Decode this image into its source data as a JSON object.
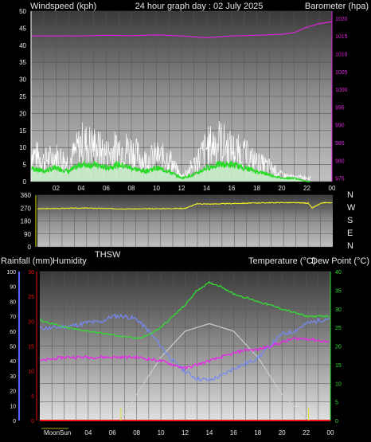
{
  "colors": {
    "windspeed": "#ffffff",
    "wind_average": "#22dd22",
    "barometer": "#dd22dd",
    "wind_direction": "#eeee22",
    "humidity": "#7788ee",
    "temperature": "#33dd33",
    "dew_point": "#ee22ee",
    "sun": "#cccccc",
    "rainfall": "#ee1111"
  },
  "chart_data": [
    {
      "type": "line",
      "title": "24 hour graph day : 02 July 2025",
      "ylabel": "Windspeed (kph)",
      "ylabel_right": "Barometer (hpa)",
      "x_tick_labels": [
        "02",
        "04",
        "06",
        "08",
        "10",
        "12",
        "14",
        "16",
        "18",
        "20",
        "22",
        "00"
      ],
      "y_ticks": [
        0,
        5,
        10,
        15,
        20,
        25,
        30,
        35,
        40,
        45,
        50
      ],
      "y2_ticks": [
        975,
        980,
        985,
        990,
        995,
        1000,
        1005,
        1010,
        1015,
        1020
      ],
      "ylim": [
        0,
        50
      ],
      "y2lim": [
        974,
        1022
      ],
      "series": [
        {
          "name": "Windspeed (kph)",
          "x": [
            0,
            1,
            2,
            3,
            4,
            5,
            6,
            7,
            8,
            9,
            10,
            11,
            12,
            13,
            14,
            15,
            16,
            17,
            18,
            19,
            20,
            21,
            22,
            23,
            24
          ],
          "values": [
            14,
            10,
            12,
            9,
            18,
            17,
            13,
            16,
            15,
            10,
            12,
            11,
            2,
            8,
            16,
            19,
            15,
            13,
            9,
            7,
            3,
            2,
            2,
            1,
            1
          ]
        },
        {
          "name": "Average wind",
          "x": [
            0,
            1,
            2,
            3,
            4,
            5,
            6,
            7,
            8,
            9,
            10,
            11,
            12,
            13,
            14,
            15,
            16,
            17,
            18,
            19,
            20,
            21,
            22,
            23,
            24
          ],
          "values": [
            4,
            3,
            4,
            3,
            5,
            5,
            4,
            5,
            4,
            3,
            4,
            3,
            1,
            2,
            4,
            5,
            5,
            4,
            3,
            2,
            1,
            1,
            0,
            0,
            0
          ]
        },
        {
          "name": "Barometer (hpa)",
          "x": [
            0,
            2,
            4,
            6,
            8,
            10,
            12,
            14,
            16,
            18,
            20,
            21,
            22,
            23,
            24
          ],
          "values": [
            1015,
            1015,
            1015,
            1015.2,
            1015.1,
            1015.3,
            1015,
            1014.5,
            1015,
            1015.2,
            1015.5,
            1016,
            1017.5,
            1018.5,
            1019
          ]
        }
      ]
    },
    {
      "type": "line",
      "title": "",
      "y_ticks": [
        0,
        90,
        180,
        270,
        360
      ],
      "ylim": [
        0,
        360
      ],
      "compass_labels": [
        "N",
        "W",
        "S",
        "E",
        "N"
      ],
      "series": [
        {
          "name": "Wind direction",
          "x": [
            0,
            2,
            4,
            6,
            8,
            10,
            12,
            13,
            14,
            16,
            18,
            20,
            22,
            22.3,
            23,
            23.3,
            24
          ],
          "values": [
            265,
            268,
            270,
            266,
            264,
            266,
            268,
            300,
            298,
            302,
            306,
            308,
            305,
            270,
            300,
            308,
            305
          ]
        }
      ]
    },
    {
      "type": "line",
      "title": "",
      "labels": {
        "rainfall": "Rainfall (mm)",
        "humidity": "Humidity",
        "thsw": "THSW",
        "temperature": "Temperature (°C)",
        "dew_point": "Dew Point (°C)",
        "moon": "Moon",
        "sun": "Sun"
      },
      "humidity_ticks": [
        0,
        10,
        20,
        30,
        40,
        50,
        60,
        70,
        80,
        90,
        100
      ],
      "rain_ticks": [
        0,
        5,
        10,
        15,
        20,
        25,
        30
      ],
      "temp_ticks": [
        0,
        5,
        10,
        15,
        20,
        25,
        30,
        35,
        40
      ],
      "temp_ylim": [
        0,
        40
      ],
      "sun_markers_x": [
        6.7,
        22.2
      ],
      "series": [
        {
          "name": "Temperature (°C)",
          "x": [
            0,
            1,
            2,
            4,
            6,
            8,
            9,
            10,
            11,
            12,
            13,
            14,
            15,
            16,
            17,
            18,
            19,
            20,
            21,
            22,
            23,
            24
          ],
          "values": [
            27,
            26,
            25,
            24,
            23,
            22,
            23,
            25,
            28,
            31,
            35,
            37,
            36,
            34,
            33,
            32,
            31,
            30,
            29,
            28,
            28,
            28
          ]
        },
        {
          "name": "Dew Point (°C)",
          "x": [
            0,
            2,
            4,
            6,
            8,
            10,
            12,
            13,
            14,
            15,
            16,
            17,
            18,
            19,
            20,
            21,
            22,
            24
          ],
          "values": [
            16,
            17,
            17,
            17,
            17,
            16,
            14,
            15,
            16,
            17,
            18,
            19,
            19,
            20,
            21,
            22,
            22,
            21
          ]
        },
        {
          "name": "Humidity",
          "x": [
            0,
            1,
            2,
            3,
            4,
            5,
            6,
            7,
            8,
            9,
            10,
            11,
            12,
            13,
            14,
            15,
            16,
            17,
            18,
            19,
            20,
            21,
            22,
            23,
            24
          ],
          "values": [
            62,
            62,
            63,
            64,
            66,
            66,
            70,
            70,
            68,
            60,
            50,
            40,
            33,
            28,
            27,
            30,
            35,
            38,
            42,
            50,
            58,
            60,
            65,
            67,
            69
          ]
        },
        {
          "name": "Sun",
          "x": [
            6.7,
            8,
            10,
            12,
            14,
            16,
            18,
            20,
            22.2
          ],
          "values": [
            0,
            7,
            17,
            24,
            26,
            24,
            17,
            7,
            0
          ]
        },
        {
          "name": "Rainfall (mm)",
          "x": [
            0,
            24
          ],
          "values": [
            0,
            0
          ]
        }
      ]
    }
  ]
}
